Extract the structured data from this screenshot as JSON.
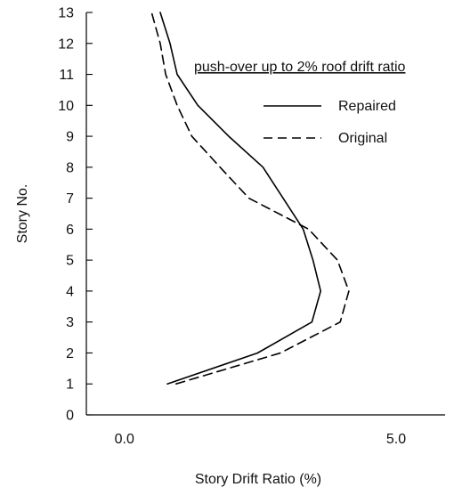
{
  "chart_data": {
    "type": "line",
    "title": "",
    "annotation": "push-over up to 2% roof drift ratio",
    "xlabel": "Story Drift Ratio (%)",
    "ylabel": "Story No.",
    "xlim": [
      -0.7,
      5.9
    ],
    "ylim": [
      0,
      13
    ],
    "x_ticks": [
      0.0,
      5.0
    ],
    "x_tick_labels": [
      "0.0",
      "5.0"
    ],
    "y_ticks": [
      0,
      1,
      2,
      3,
      4,
      5,
      6,
      7,
      8,
      9,
      10,
      11,
      12,
      13
    ],
    "y_tick_labels": [
      "0",
      "1",
      "2",
      "3",
      "4",
      "5",
      "6",
      "7",
      "8",
      "9",
      "10",
      "11",
      "12",
      "13"
    ],
    "grid": false,
    "legend_position": "upper-right",
    "series": [
      {
        "name": "Repaired",
        "line_style": "solid",
        "color": "#000000",
        "points": [
          {
            "x": 0.79,
            "y": 1
          },
          {
            "x": 2.45,
            "y": 2
          },
          {
            "x": 3.45,
            "y": 3
          },
          {
            "x": 3.61,
            "y": 4
          },
          {
            "x": 3.47,
            "y": 5
          },
          {
            "x": 3.29,
            "y": 6
          },
          {
            "x": 2.92,
            "y": 7
          },
          {
            "x": 2.55,
            "y": 8
          },
          {
            "x": 1.92,
            "y": 9
          },
          {
            "x": 1.35,
            "y": 10
          },
          {
            "x": 0.97,
            "y": 11
          },
          {
            "x": 0.84,
            "y": 12
          },
          {
            "x": 0.66,
            "y": 13
          }
        ]
      },
      {
        "name": "Original",
        "line_style": "dashed",
        "color": "#000000",
        "points": [
          {
            "x": 0.95,
            "y": 1
          },
          {
            "x": 2.87,
            "y": 2
          },
          {
            "x": 3.97,
            "y": 3
          },
          {
            "x": 4.13,
            "y": 4
          },
          {
            "x": 3.92,
            "y": 5
          },
          {
            "x": 3.39,
            "y": 6
          },
          {
            "x": 2.29,
            "y": 7
          },
          {
            "x": 1.76,
            "y": 8
          },
          {
            "x": 1.24,
            "y": 9
          },
          {
            "x": 0.97,
            "y": 10
          },
          {
            "x": 0.76,
            "y": 11
          },
          {
            "x": 0.66,
            "y": 12
          },
          {
            "x": 0.5,
            "y": 13
          }
        ]
      }
    ]
  }
}
